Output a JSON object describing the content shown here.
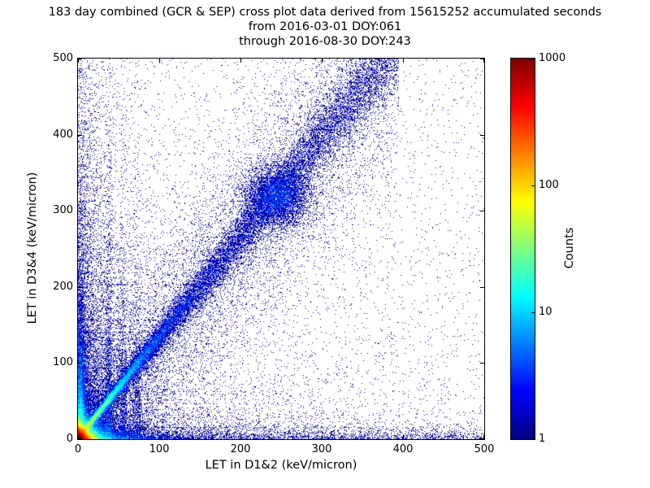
{
  "chart_data": {
    "type": "heatmap",
    "title": "183 day combined (GCR & SEP) cross plot data derived from 15615252 accumulated seconds",
    "subtitle1": "from 2016-03-01 DOY:061",
    "subtitle2": "through 2016-08-30 DOY:243",
    "xlabel": "LET in D1&2 (keV/micron)",
    "ylabel": "LET in D3&4 (keV/micron)",
    "xlim": [
      0,
      500
    ],
    "ylim": [
      0,
      500
    ],
    "xticks": [
      0,
      100,
      200,
      300,
      400,
      500
    ],
    "yticks": [
      0,
      100,
      200,
      300,
      400,
      500
    ],
    "grid": false,
    "colormap": "jet",
    "background": "#ffffff",
    "point_color_min": "#000080",
    "point_color_max": "#800000",
    "period": {
      "days": 183,
      "from": "2016-03-01",
      "from_doy": "061",
      "through": "2016-08-30",
      "through_doy": "243",
      "accumulated_seconds": 15615252
    },
    "colorbar": {
      "label": "Counts",
      "scale": "log",
      "min": 1,
      "max": 1000,
      "ticks": [
        1,
        10,
        100,
        1000
      ]
    },
    "density_model": {
      "seed": 42,
      "bins": [
        500,
        500
      ],
      "max_count": 3000,
      "features": [
        {
          "kind": "exp2",
          "amp": 3000,
          "x_scale": 5,
          "y_scale": 5
        },
        {
          "kind": "exp2",
          "amp": 60,
          "x_scale": 13,
          "y_scale": 13
        },
        {
          "kind": "vband",
          "cx": 3,
          "sigma": 3,
          "amp": 18,
          "y_scale": 55
        },
        {
          "kind": "exp2",
          "amp": 14,
          "x_scale": 45,
          "y_scale": 5
        },
        {
          "kind": "diag",
          "amp": 70,
          "slope": 1.35,
          "x_scale": 28,
          "sigma0": 2,
          "sigma_slope": 0.05,
          "xmax": 170
        },
        {
          "kind": "diag",
          "amp": 2.4,
          "slope": 1.32,
          "x_scale": 260,
          "sigma0": 6,
          "sigma_slope": 0.055,
          "xmax": 395
        },
        {
          "kind": "diag",
          "amp": 0.22,
          "slope": 1.3,
          "x_scale": 420,
          "sigma0": 55,
          "sigma_slope": 0.1,
          "xmax": 395
        },
        {
          "kind": "blob",
          "cx": 245,
          "cy": 318,
          "amp": 2.2,
          "sigma": 20
        },
        {
          "kind": "vband",
          "cx": 38,
          "sigma": 2.5,
          "amp": 1.8,
          "y_scale": 110
        },
        {
          "kind": "vband",
          "cx": 55,
          "sigma": 2.5,
          "amp": 1.2,
          "y_scale": 100
        },
        {
          "kind": "vband",
          "cx": 73,
          "sigma": 3,
          "amp": 0.9,
          "y_scale": 95
        },
        {
          "kind": "exp2",
          "amp": 2.2,
          "x_scale": 22,
          "y_scale": 170
        },
        {
          "kind": "exp2",
          "amp": 0.8,
          "x_scale": 2000,
          "y_scale": 7
        },
        {
          "kind": "exp2",
          "amp": 0.55,
          "x_scale": 130,
          "y_scale": 45
        },
        {
          "kind": "exp2",
          "amp": 0.035,
          "x_scale": 240,
          "y_scale": 380
        },
        {
          "kind": "uniform",
          "amp": 0.01
        }
      ]
    }
  }
}
